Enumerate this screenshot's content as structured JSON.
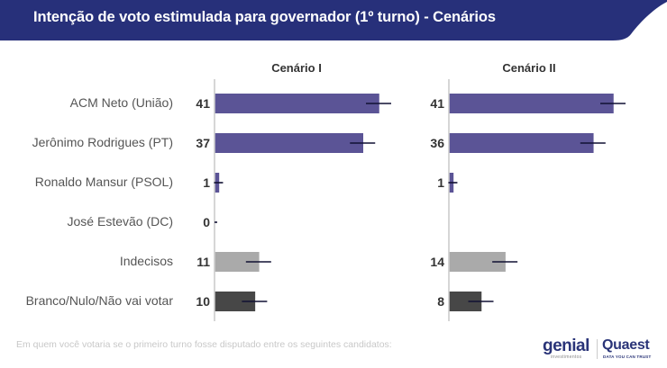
{
  "header": {
    "title": "Intenção de voto estimulada para governador (1º turno) - Cenários",
    "color": "#27307a"
  },
  "chart_data": [
    {
      "type": "bar",
      "orientation": "horizontal",
      "title": "Cenário I",
      "categories": [
        "ACM Neto (União)",
        "Jerônimo Rodrigues (PT)",
        "Ronaldo Mansur (PSOL)",
        "José Estevão (DC)",
        "Indecisos",
        "Branco/Nulo/Não vai votar"
      ],
      "values": [
        41,
        37,
        1,
        0,
        11,
        10
      ],
      "value_labels": [
        "41",
        "37",
        "1",
        "0",
        "11",
        "10"
      ],
      "error_bars": true,
      "bar_colors": [
        "#5b5496",
        "#5b5496",
        "#5b5496",
        "#5b5496",
        "#aaaaaa",
        "#474747"
      ],
      "xlim": [
        0,
        45
      ],
      "grid": false
    },
    {
      "type": "bar",
      "orientation": "horizontal",
      "title": "Cenário II",
      "categories": [
        "ACM Neto (União)",
        "Jerônimo Rodrigues (PT)",
        "Ronaldo Mansur (PSOL)",
        "José Estevão (DC)",
        "Indecisos",
        "Branco/Nulo/Não vai votar"
      ],
      "values": [
        41,
        36,
        1,
        null,
        14,
        8
      ],
      "value_labels": [
        "41",
        "36",
        "1",
        "",
        "14",
        "8"
      ],
      "error_bars": true,
      "bar_colors": [
        "#5b5496",
        "#5b5496",
        "#5b5496",
        "#5b5496",
        "#aaaaaa",
        "#474747"
      ],
      "xlim": [
        0,
        45
      ],
      "grid": false
    }
  ],
  "footer": {
    "note": "Em quem você votaria se o primeiro turno fosse disputado entre os seguintes candidatos:",
    "logo_genial": "genial",
    "logo_genial_sub": "investimentos",
    "logo_quaest": "Quaest",
    "logo_quaest_sub": "DATA YOU CAN TRUST"
  }
}
